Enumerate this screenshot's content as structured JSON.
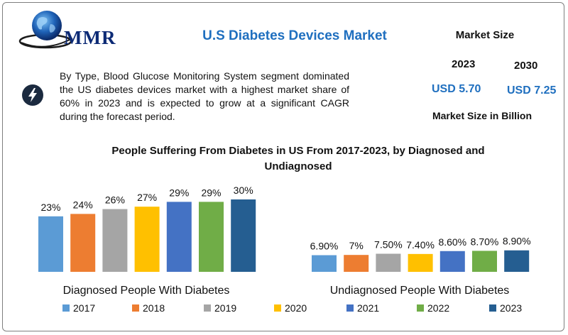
{
  "header": {
    "logo_text": "MMR",
    "title": "U.S Diabetes Devices Market"
  },
  "market_size": {
    "label": "Market Size",
    "years": [
      "2023",
      "2030"
    ],
    "values": [
      "USD 5.70",
      "USD 7.25"
    ],
    "unit_note": "Market Size in Billion"
  },
  "description": "By Type, Blood Glucose Monitoring System segment dominated the US diabetes devices market with a highest market share of 60% in 2023 and is expected to grow at a significant CAGR during the forecast period.",
  "icons": {
    "logo": "globe-icon",
    "highlight": "lightning-bolt-icon"
  },
  "chart_data": {
    "type": "bar",
    "title": "People Suffering From Diabetes in US From 2017-2023, by Diagnosed and Undiagnosed",
    "categories": [
      "Diagnosed People With Diabetes",
      "Undiagnosed People With Diabetes"
    ],
    "series": [
      {
        "name": "2017",
        "color": "#5b9bd5",
        "values": [
          23,
          6.9
        ],
        "labels": [
          "23%",
          "6.90%"
        ]
      },
      {
        "name": "2018",
        "color": "#ed7d31",
        "values": [
          24,
          7
        ],
        "labels": [
          "24%",
          "7%"
        ]
      },
      {
        "name": "2019",
        "color": "#a5a5a5",
        "values": [
          26,
          7.5
        ],
        "labels": [
          "26%",
          "7.50%"
        ]
      },
      {
        "name": "2020",
        "color": "#ffc000",
        "values": [
          27,
          7.4
        ],
        "labels": [
          "27%",
          "7.40%"
        ]
      },
      {
        "name": "2021",
        "color": "#4472c4",
        "values": [
          29,
          8.6
        ],
        "labels": [
          "29%",
          "8.60%"
        ]
      },
      {
        "name": "2022",
        "color": "#70ad47",
        "values": [
          29,
          8.7
        ],
        "labels": [
          "29%",
          "8.70%"
        ]
      },
      {
        "name": "2023",
        "color": "#255e91",
        "values": [
          30,
          8.9
        ],
        "labels": [
          "30%",
          "8.90%"
        ]
      }
    ],
    "legend_position": "bottom",
    "grid": false
  }
}
